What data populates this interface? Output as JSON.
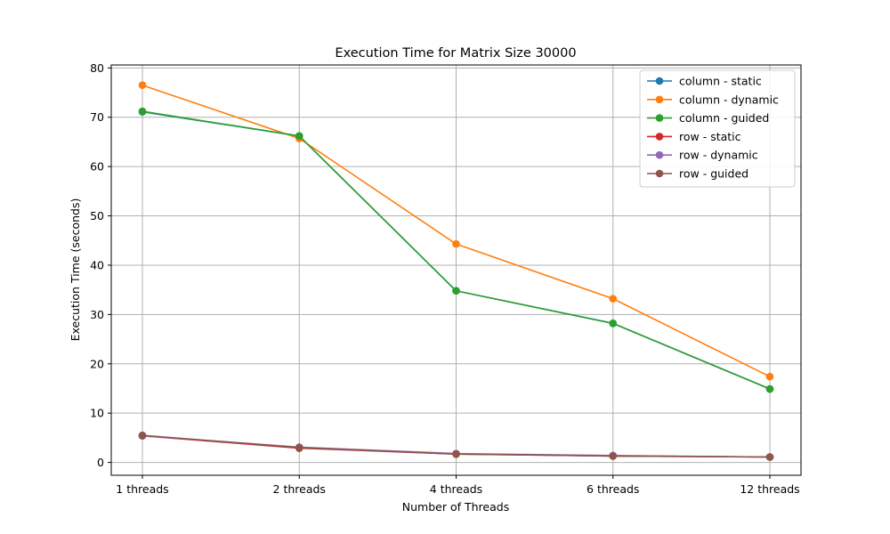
{
  "chart_data": {
    "type": "line",
    "title": "Execution Time for Matrix Size 30000",
    "xlabel": "Number of Threads",
    "ylabel": "Execution Time (seconds)",
    "categories": [
      "1 threads",
      "2 threads",
      "4 threads",
      "6 threads",
      "12 threads"
    ],
    "ylim": [
      -2.6,
      80.6
    ],
    "yticks": [
      0,
      10,
      20,
      30,
      40,
      50,
      60,
      70,
      80
    ],
    "grid": true,
    "legend_position": "top-right",
    "series": [
      {
        "name": "column - static",
        "color": "#1f77b4",
        "values": [
          71.1,
          66.2,
          34.8,
          28.2,
          14.9
        ]
      },
      {
        "name": "column - dynamic",
        "color": "#ff7f0e",
        "values": [
          76.5,
          65.7,
          44.3,
          33.2,
          17.4
        ]
      },
      {
        "name": "column - guided",
        "color": "#2ca02c",
        "values": [
          71.2,
          66.2,
          34.8,
          28.2,
          14.9
        ]
      },
      {
        "name": "row - static",
        "color": "#d62728",
        "values": [
          5.4,
          2.9,
          1.7,
          1.3,
          1.1
        ]
      },
      {
        "name": "row - dynamic",
        "color": "#9467bd",
        "values": [
          5.4,
          3.1,
          1.8,
          1.4,
          1.1
        ]
      },
      {
        "name": "row - guided",
        "color": "#8c564b",
        "values": [
          5.5,
          3.0,
          1.7,
          1.3,
          1.1
        ]
      }
    ]
  }
}
